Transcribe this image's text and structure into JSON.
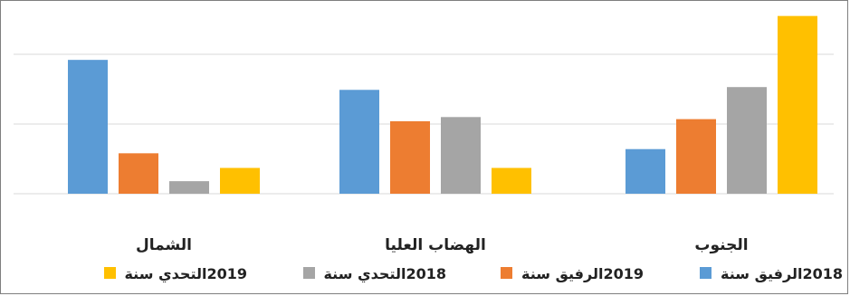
{
  "chart_data": {
    "type": "bar",
    "title": "",
    "xlabel": "",
    "ylabel": "",
    "ylim": [
      0,
      2.55
    ],
    "grid": true,
    "gridlines": [
      0,
      1,
      2
    ],
    "legend_position": "bottom",
    "categories": [
      "الشمال",
      "الهضاب العليا",
      "الجنوب"
    ],
    "series": [
      {
        "name": "2018الرفيق سنة",
        "color": "#5b9bd5",
        "values": [
          1.92,
          1.49,
          0.64
        ]
      },
      {
        "name": "2019الرفيق سنة",
        "color": "#ed7d31",
        "values": [
          0.58,
          1.04,
          1.07
        ]
      },
      {
        "name": "2018التحدي سنة",
        "color": "#a5a5a5",
        "values": [
          0.18,
          1.1,
          1.53
        ]
      },
      {
        "name": "2019التحدي سنة",
        "color": "#ffc000",
        "values": [
          0.37,
          0.37,
          2.55
        ]
      }
    ]
  }
}
